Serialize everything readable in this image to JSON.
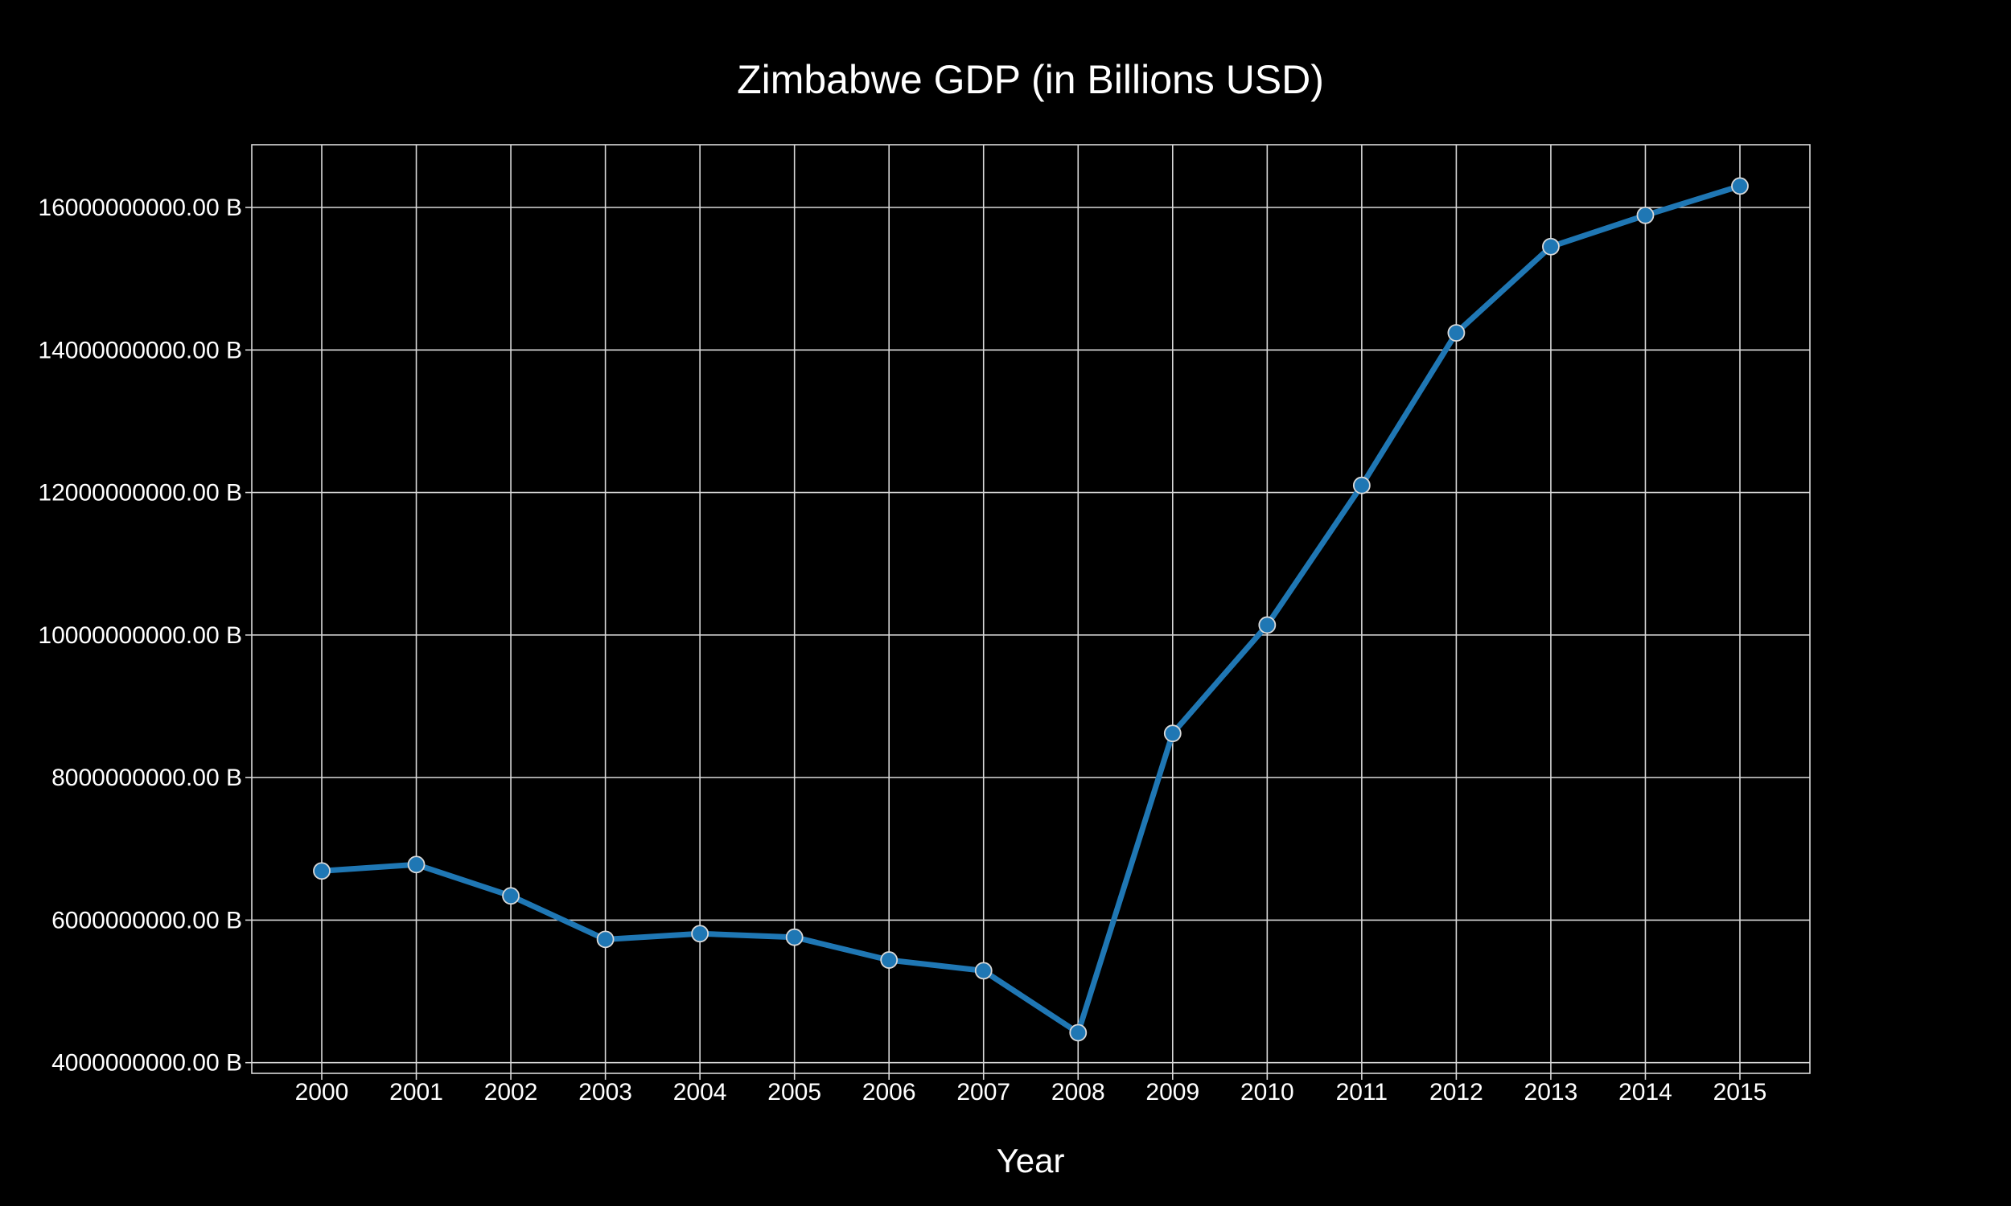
{
  "chart_data": {
    "type": "line",
    "title": "Zimbabwe GDP (in Billions USD)",
    "xlabel": "Year",
    "ylabel": "",
    "x": [
      "2000",
      "2001",
      "2002",
      "2003",
      "2004",
      "2005",
      "2006",
      "2007",
      "2008",
      "2009",
      "2010",
      "2011",
      "2012",
      "2013",
      "2014",
      "2015"
    ],
    "series": [
      {
        "values": [
          6690000000,
          6780000000,
          6340000000,
          5730000000,
          5810000000,
          5760000000,
          5440000000,
          5290000000,
          4420000000,
          8620000000,
          10140000000,
          12100000000,
          14240000000,
          15450000000,
          15890000000,
          16300000000
        ],
        "color": "#1f77b4"
      }
    ],
    "yticks": [
      4000000000,
      6000000000,
      8000000000,
      10000000000,
      12000000000,
      14000000000,
      16000000000
    ],
    "ytick_labels": [
      "4000000000.00 B",
      "6000000000.00 B",
      "8000000000.00 B",
      "10000000000.00 B",
      "12000000000.00 B",
      "14000000000.00 B",
      "16000000000.00 B"
    ],
    "ylim": [
      3850000000,
      16880000000
    ],
    "grid": true,
    "legend": "none",
    "colors": {
      "background": "#000000",
      "text": "#ffffff",
      "grid": "#d9d9d9",
      "marker": "#1f77b4"
    }
  }
}
